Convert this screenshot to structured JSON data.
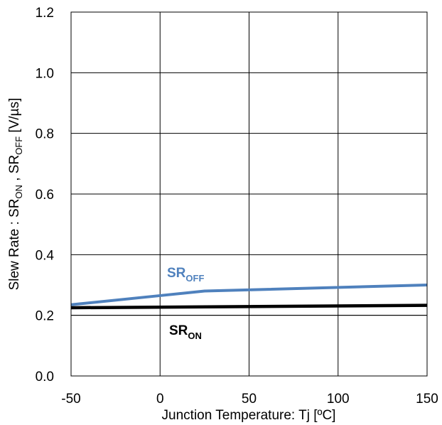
{
  "chart_data": {
    "type": "line",
    "xlabel": "Junction Temperature: Tj [ºC]",
    "ylabel": {
      "parts": [
        "Slew Rate : SR",
        "ON",
        " , SR",
        "OFF",
        " [V/µs]"
      ]
    },
    "xlim": [
      -50,
      150
    ],
    "ylim": [
      0.0,
      1.2
    ],
    "xticks": [
      "-50",
      "0",
      "50",
      "100",
      "150"
    ],
    "yticks": [
      "0.0",
      "0.2",
      "0.4",
      "0.6",
      "0.8",
      "1.0",
      "1.2"
    ],
    "xtick_values": [
      -50,
      0,
      50,
      100,
      150
    ],
    "ytick_values": [
      0.0,
      0.2,
      0.4,
      0.6,
      0.8,
      1.0,
      1.2
    ],
    "grid": true,
    "series": [
      {
        "label_base": "SR",
        "label_sub": "OFF",
        "color": "#4f81bd",
        "x": [
          -50,
          0,
          25,
          150
        ],
        "y": [
          0.235,
          0.265,
          0.28,
          0.3
        ]
      },
      {
        "label_base": "SR",
        "label_sub": "ON",
        "color": "#000000",
        "x": [
          -50,
          150
        ],
        "y": [
          0.225,
          0.233
        ]
      }
    ]
  }
}
